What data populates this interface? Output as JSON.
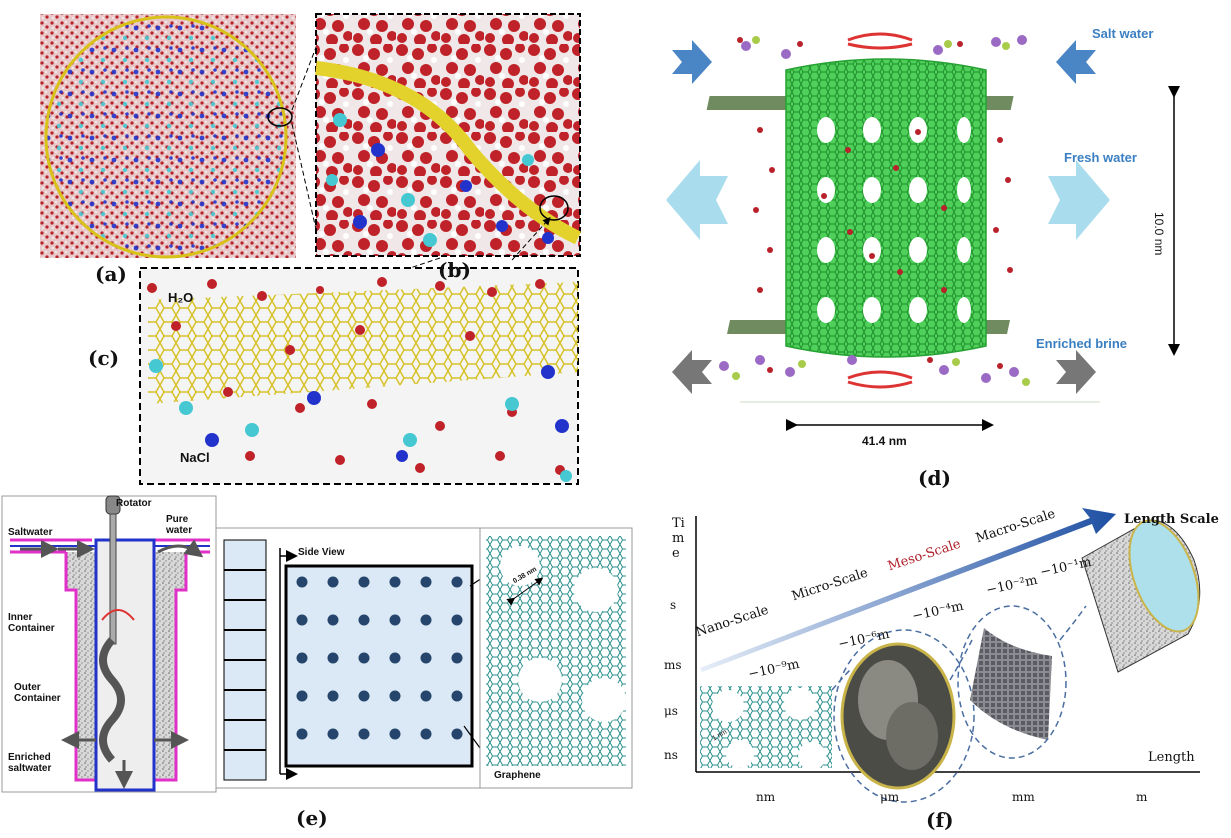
{
  "panels": {
    "a": {
      "label": "(a)"
    },
    "b": {
      "label": "(b)"
    },
    "c": {
      "label": "(c)",
      "water": "H₂O",
      "salt": "NaCl"
    },
    "d": {
      "label": "(d)",
      "salt_water": "Salt water",
      "fresh_water": "Fresh water",
      "enriched_brine": "Enriched  brine",
      "height": "10.0 nm",
      "width": "41.4 nm"
    },
    "e": {
      "label": "(e)",
      "rotator": "Rotator",
      "saltwater": "Saltwater",
      "pure_water": "Pure water",
      "inner_container": "Inner Container",
      "outer_container": "Outer Container",
      "enriched_saltwater": "Enriched saltwater",
      "side_view": "Side View",
      "graphene": "Graphene",
      "pore_size": "0.38 nm"
    },
    "f": {
      "label": "(f)",
      "axis_y": "Tim e",
      "axis_length_scale": "Length Scale",
      "axis_x": "Length",
      "scales": [
        "Nano-Scale",
        "Micro-Scale",
        "Meso-Scale",
        "Macro-Scale"
      ],
      "exponents": [
        "−10⁻⁹m",
        "−10⁻⁶m",
        "−10⁻⁴m",
        "−10⁻²m",
        "−10⁻¹m"
      ],
      "y_ticks": [
        "s",
        "ms",
        "μs",
        "ns"
      ],
      "x_ticks": [
        "nm",
        "μm",
        "mm",
        "m"
      ],
      "pore": "1 nm"
    }
  },
  "colors": {
    "oxygen": "#c0222a",
    "sodium": "#3bc3cf",
    "chloride": "#1b2fc9",
    "graphene_yellow": "#e8d84a",
    "nanotube_green": "#3fc147",
    "arrow_blue": "#4a86c6",
    "arrow_light": "#a9dcec"
  }
}
